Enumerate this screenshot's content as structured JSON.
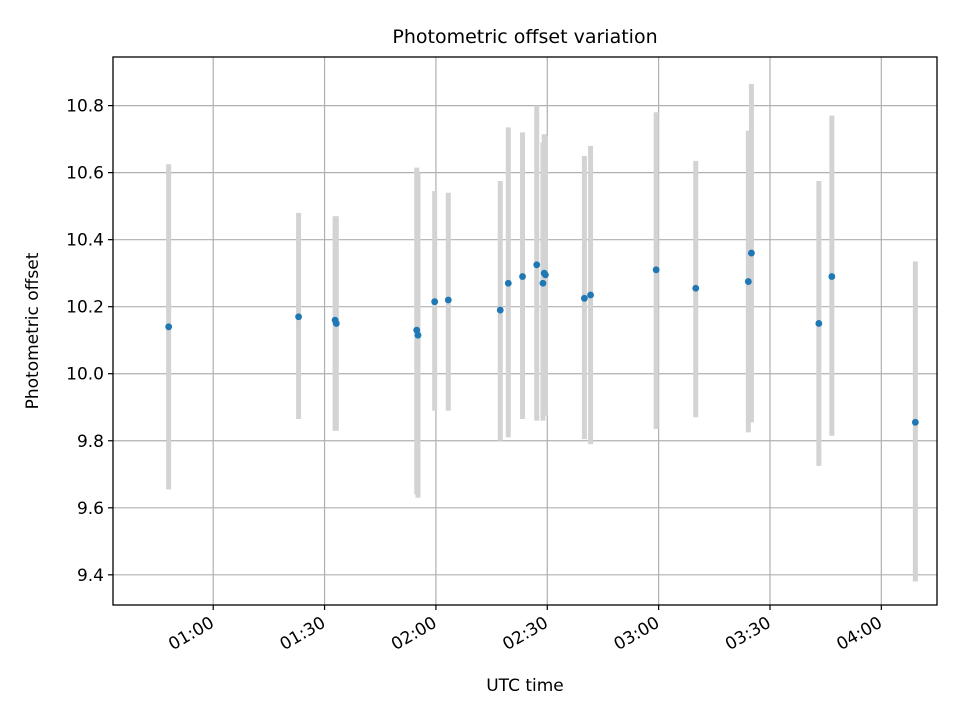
{
  "chart_data": {
    "type": "scatter",
    "title": "Photometric offset variation",
    "xlabel": "UTC time",
    "ylabel": "Photometric offset",
    "x_is_time": true,
    "xlim": [
      "00:33",
      "04:15"
    ],
    "ylim": [
      9.31,
      10.945
    ],
    "grid": true,
    "xticks": [
      "01:00",
      "01:30",
      "02:00",
      "02:30",
      "03:00",
      "03:30",
      "04:00"
    ],
    "yticks": [
      9.4,
      9.6,
      9.8,
      10.0,
      10.2,
      10.4,
      10.6,
      10.8
    ],
    "ytick_labels": [
      "9.4",
      "9.6",
      "9.8",
      "10.0",
      "10.2",
      "10.4",
      "10.6",
      "10.8"
    ],
    "colors": {
      "point": "#1f77b4",
      "errorbar": "#d3d3d3",
      "grid": "#b0b0b0"
    },
    "points": [
      {
        "t": "00:48:00",
        "y": 10.14,
        "ylo": 9.655,
        "yhi": 10.625
      },
      {
        "t": "01:23:00",
        "y": 10.17,
        "ylo": 9.865,
        "yhi": 10.48
      },
      {
        "t": "01:32:50",
        "y": 10.16,
        "ylo": 9.83,
        "yhi": 10.47
      },
      {
        "t": "01:33:10",
        "y": 10.15,
        "ylo": 9.83,
        "yhi": 10.47
      },
      {
        "t": "01:54:50",
        "y": 10.13,
        "ylo": 9.64,
        "yhi": 10.615
      },
      {
        "t": "01:55:10",
        "y": 10.115,
        "ylo": 9.63,
        "yhi": 10.6
      },
      {
        "t": "01:59:40",
        "y": 10.215,
        "ylo": 9.89,
        "yhi": 10.545
      },
      {
        "t": "02:03:20",
        "y": 10.22,
        "ylo": 9.89,
        "yhi": 10.54
      },
      {
        "t": "02:17:20",
        "y": 10.19,
        "ylo": 9.8,
        "yhi": 10.575
      },
      {
        "t": "02:19:30",
        "y": 10.27,
        "ylo": 9.81,
        "yhi": 10.735
      },
      {
        "t": "02:23:20",
        "y": 10.29,
        "ylo": 9.865,
        "yhi": 10.72
      },
      {
        "t": "02:27:10",
        "y": 10.325,
        "ylo": 9.86,
        "yhi": 10.8
      },
      {
        "t": "02:28:50",
        "y": 10.27,
        "ylo": 9.86,
        "yhi": 10.69
      },
      {
        "t": "02:29:10",
        "y": 10.3,
        "ylo": 9.875,
        "yhi": 10.715
      },
      {
        "t": "02:29:30",
        "y": 10.295,
        "ylo": 9.875,
        "yhi": 10.71
      },
      {
        "t": "02:40:00",
        "y": 10.225,
        "ylo": 9.805,
        "yhi": 10.65
      },
      {
        "t": "02:41:40",
        "y": 10.235,
        "ylo": 9.79,
        "yhi": 10.68
      },
      {
        "t": "02:59:20",
        "y": 10.31,
        "ylo": 9.835,
        "yhi": 10.78
      },
      {
        "t": "03:10:00",
        "y": 10.255,
        "ylo": 9.87,
        "yhi": 10.635
      },
      {
        "t": "03:24:10",
        "y": 10.275,
        "ylo": 9.825,
        "yhi": 10.725
      },
      {
        "t": "03:25:00",
        "y": 10.36,
        "ylo": 9.855,
        "yhi": 10.865
      },
      {
        "t": "03:43:10",
        "y": 10.15,
        "ylo": 9.725,
        "yhi": 10.575
      },
      {
        "t": "03:46:40",
        "y": 10.29,
        "ylo": 9.815,
        "yhi": 10.77
      },
      {
        "t": "04:09:10",
        "y": 9.855,
        "ylo": 9.38,
        "yhi": 10.335
      }
    ]
  }
}
